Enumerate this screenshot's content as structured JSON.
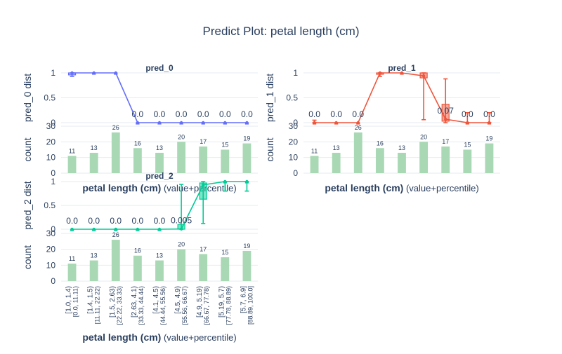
{
  "title": "Predict Plot: petal length (cm)",
  "x_axis_title_bold": "petal length (cm)",
  "x_axis_title_suffix": " (value+percentile)",
  "count_axis_label": "count",
  "categories": [
    "[1.0, 1.4)",
    "[1.4, 1.5)",
    "[1.5, 2.63)",
    "[2.63, 4.1)",
    "[4.1, 4.5)",
    "[4.5, 4.9)",
    "[4.9, 5.19)",
    "[5.19, 5.7)",
    "[5.7, 6.9]"
  ],
  "percentiles": [
    "[0.0, 11.11)",
    "[11.11, 22.22)",
    "[22.22, 33.33)",
    "[33.33, 44.44)",
    "[44.44, 55.56)",
    "[55.56, 66.67)",
    "[66.67, 77.78)",
    "[77.78, 88.89)",
    "[88.89, 100.0]"
  ],
  "counts": [
    11,
    13,
    26,
    16,
    13,
    20,
    17,
    15,
    19
  ],
  "colors": {
    "pred_0": "#636efa",
    "pred_1": "#ef553b",
    "pred_2": "#00cc96",
    "count_bar": "#a8d8b4"
  },
  "chart_data": [
    {
      "type": "line",
      "name": "pred_0",
      "title": "pred_0",
      "ylabel": "pred_0 dist",
      "ylim": [
        0,
        1
      ],
      "yticks": [
        0,
        0.5,
        1
      ],
      "values": [
        1,
        1,
        1,
        0,
        0,
        0,
        0,
        0,
        0
      ],
      "labels": [
        "",
        "",
        "",
        "0.0",
        "0.0",
        "0.0",
        "0.0",
        "0.0",
        "0.0"
      ],
      "q1": [
        0.96,
        1,
        1,
        0,
        0,
        0,
        0,
        0,
        0
      ],
      "q3": [
        1,
        1,
        1,
        0,
        0,
        0,
        0,
        0,
        0
      ],
      "lo": [
        0.93,
        1,
        1,
        0,
        0,
        0,
        0,
        0,
        0
      ],
      "hi": [
        1,
        1,
        1,
        0,
        0,
        0,
        0,
        0,
        0
      ]
    },
    {
      "type": "line",
      "name": "pred_1",
      "title": "pred_1",
      "ylabel": "pred_1 dist",
      "ylim": [
        0,
        1
      ],
      "yticks": [
        0,
        0.5,
        1
      ],
      "values": [
        0,
        0,
        0,
        1,
        1,
        0.94,
        0.07,
        0,
        0
      ],
      "labels": [
        "0.0",
        "0.0",
        "0.0",
        "",
        "",
        "",
        "0.07",
        "0.0",
        "0.0"
      ],
      "q1": [
        0,
        0,
        0,
        0.98,
        1,
        0.9,
        0.03,
        0,
        0
      ],
      "q3": [
        0,
        0,
        0,
        1,
        1,
        1,
        0.37,
        0,
        0
      ],
      "lo": [
        0,
        0,
        0,
        0.93,
        1,
        0.06,
        0,
        0,
        0
      ],
      "hi": [
        0.05,
        0,
        0,
        1,
        1,
        1,
        0.88,
        0.2,
        0.2
      ]
    },
    {
      "type": "line",
      "name": "pred_2",
      "title": "pred_2",
      "ylabel": "pred_2 dist",
      "ylim": [
        0,
        1
      ],
      "yticks": [
        0,
        0.5,
        1
      ],
      "values": [
        0,
        0,
        0,
        0,
        0,
        0.005,
        0.93,
        1,
        1
      ],
      "labels": [
        "0.0",
        "0.0",
        "0.0",
        "0.0",
        "0.0",
        "0.005",
        "",
        "",
        ""
      ],
      "q1": [
        0,
        0,
        0,
        0,
        0,
        0,
        0.63,
        1,
        1
      ],
      "q3": [
        0,
        0,
        0,
        0,
        0,
        0.1,
        0.97,
        1,
        1
      ],
      "lo": [
        0,
        0,
        0,
        0,
        0,
        0,
        0.12,
        0.8,
        0.8
      ],
      "hi": [
        0,
        0,
        0,
        0,
        0,
        0.94,
        1,
        1,
        1
      ]
    }
  ]
}
